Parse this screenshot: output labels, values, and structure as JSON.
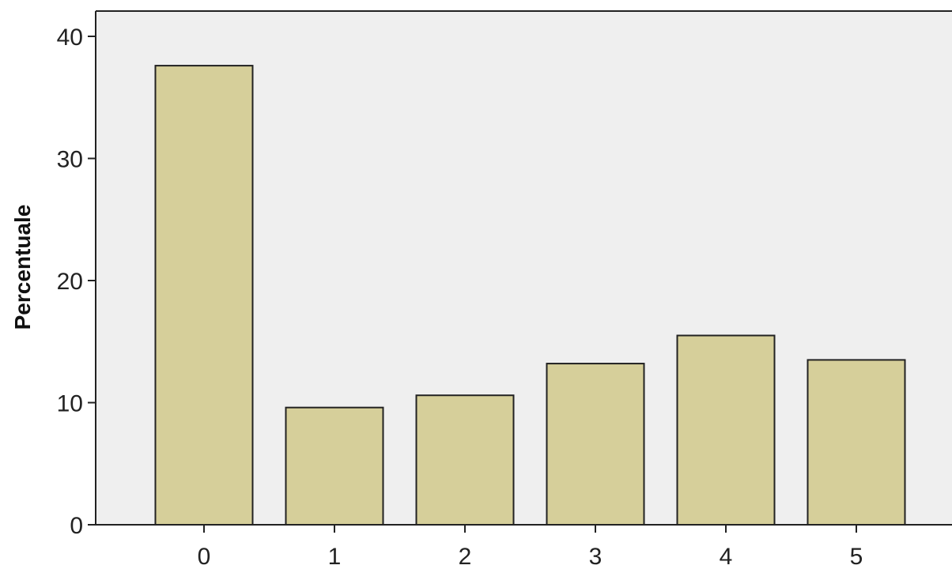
{
  "chart_data": {
    "type": "bar",
    "categories": [
      "0",
      "1",
      "2",
      "3",
      "4",
      "5"
    ],
    "values": [
      37.6,
      9.6,
      10.6,
      13.2,
      15.5,
      13.5
    ],
    "title": "",
    "xlabel": "",
    "ylabel": "Percentuale",
    "ylim": [
      0,
      42
    ],
    "yticks": [
      0,
      10,
      20,
      30,
      40
    ],
    "grid": false,
    "colors": {
      "bar_fill": "#d6cf9a",
      "bar_stroke": "#222222",
      "plot_background": "#efefef",
      "axis": "#222222"
    }
  }
}
